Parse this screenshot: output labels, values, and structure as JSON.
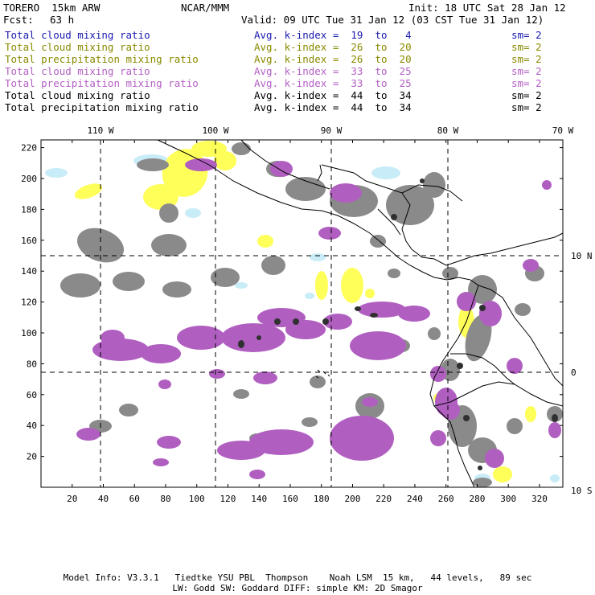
{
  "header": {
    "model": "TORERO  15km ARW",
    "org": "NCAR/MMM",
    "init": "Init: 18 UTC Sat 28 Jan 12",
    "fcst_label": "Fcst:",
    "fcst_value": "63 h",
    "valid": "Valid: 09 UTC Tue 31 Jan 12 (03 CST Tue 31 Jan 12)"
  },
  "legend": [
    {
      "name": "Total cloud mixing ratio",
      "kindex": "Avg. k-index =  19  to   4",
      "sm": "sm= 2",
      "color": "#1a1ab0"
    },
    {
      "name": "Total cloud mixing ratio",
      "kindex": "Avg. k-index =  26  to  20",
      "sm": "sm= 2",
      "color": "#8a8a00"
    },
    {
      "name": "Total precipitation mixing ratio",
      "kindex": "Avg. k-index =  26  to  20",
      "sm": "sm= 2",
      "color": "#8a8a00"
    },
    {
      "name": "Total cloud mixing ratio",
      "kindex": "Avg. k-index =  33  to  25",
      "sm": "sm= 2",
      "color": "#b35fc4"
    },
    {
      "name": "Total precipitation mixing ratio",
      "kindex": "Avg. k-index =  33  to  25",
      "sm": "sm= 2",
      "color": "#b35fc4"
    },
    {
      "name": "Total cloud mixing ratio",
      "kindex": "Avg. k-index =  44  to  34",
      "sm": "sm= 2",
      "color": "#000000"
    },
    {
      "name": "Total precipitation mixing ratio",
      "kindex": "Avg. k-index =  44  to  34",
      "sm": "sm= 2",
      "color": "#000000"
    }
  ],
  "chart_data": {
    "type": "heatmap",
    "grid": true,
    "xlim": [
      0,
      335
    ],
    "ylim": [
      0,
      225
    ],
    "x_ticks": [
      "20",
      "40",
      "60",
      "80",
      "100",
      "120",
      "140",
      "160",
      "180",
      "200",
      "220",
      "240",
      "260",
      "280",
      "300",
      "320"
    ],
    "y_ticks": [
      "20",
      "40",
      "60",
      "80",
      "100",
      "120",
      "140",
      "160",
      "180",
      "200",
      "220"
    ],
    "lon_labels": [
      "110 W",
      "100 W",
      "90 W",
      "80 W",
      "70 W"
    ],
    "lat_labels": [
      "10 N",
      "0",
      "10 S"
    ],
    "fill_colors": {
      "cloud_low": "#c8ecf8",
      "cloud_mid": "#ffff5a",
      "precip_mid": "#ffff5a",
      "cloud_high": "#b05fc0",
      "precip_high": "#b05fc0",
      "cloud_very_high": "#8a8a8a",
      "precip_very_high": "#303030"
    }
  },
  "footer": {
    "line1": "Model Info: V3.3.1   Tiedtke YSU PBL  Thompson    Noah LSM  15 km,   44 levels,   89 sec",
    "line2": "LW: Godd SW: Goddard DIFF: simple KM: 2D Smagor"
  }
}
